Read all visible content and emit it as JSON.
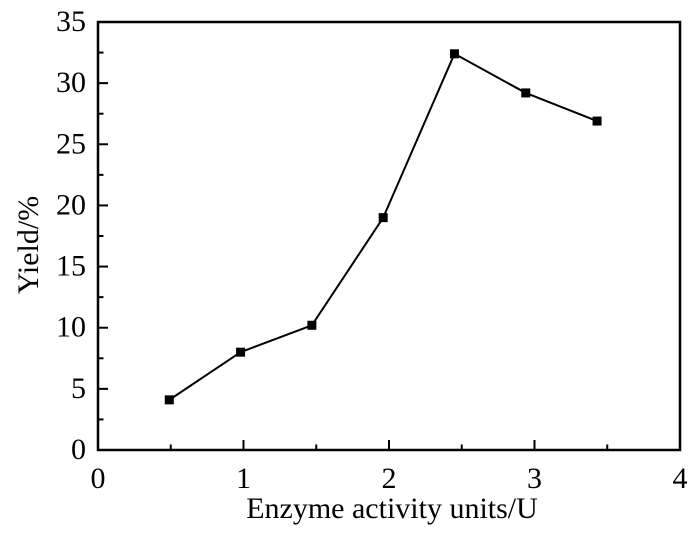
{
  "figure": {
    "background": "#ffffff",
    "frame_color": "#000000"
  },
  "chart_data": {
    "type": "line",
    "title": "",
    "xlabel": "Enzyme activity units/U",
    "ylabel": "Yield/%",
    "xlim": [
      0,
      4
    ],
    "ylim": [
      0,
      35
    ],
    "x_major_ticks": [
      0,
      1,
      2,
      3,
      4
    ],
    "x_minor_ticks": [
      0.5,
      1.5,
      2.5,
      3.5
    ],
    "y_major_ticks": [
      0,
      5,
      10,
      15,
      20,
      25,
      30,
      35
    ],
    "y_minor_ticks": [
      2.5,
      7.5,
      12.5,
      17.5,
      22.5,
      27.5,
      32.5
    ],
    "grid": false,
    "legend": null,
    "ticks_direction": "in",
    "series": [
      {
        "name": "Yield",
        "marker": "square",
        "marker_size": 9,
        "line_color": "#000000",
        "marker_color": "#000000",
        "x": [
          0.49,
          0.98,
          1.47,
          1.96,
          2.45,
          2.94,
          3.43
        ],
        "y": [
          4.1,
          8.0,
          10.2,
          19.0,
          32.4,
          29.2,
          26.9
        ]
      }
    ]
  }
}
